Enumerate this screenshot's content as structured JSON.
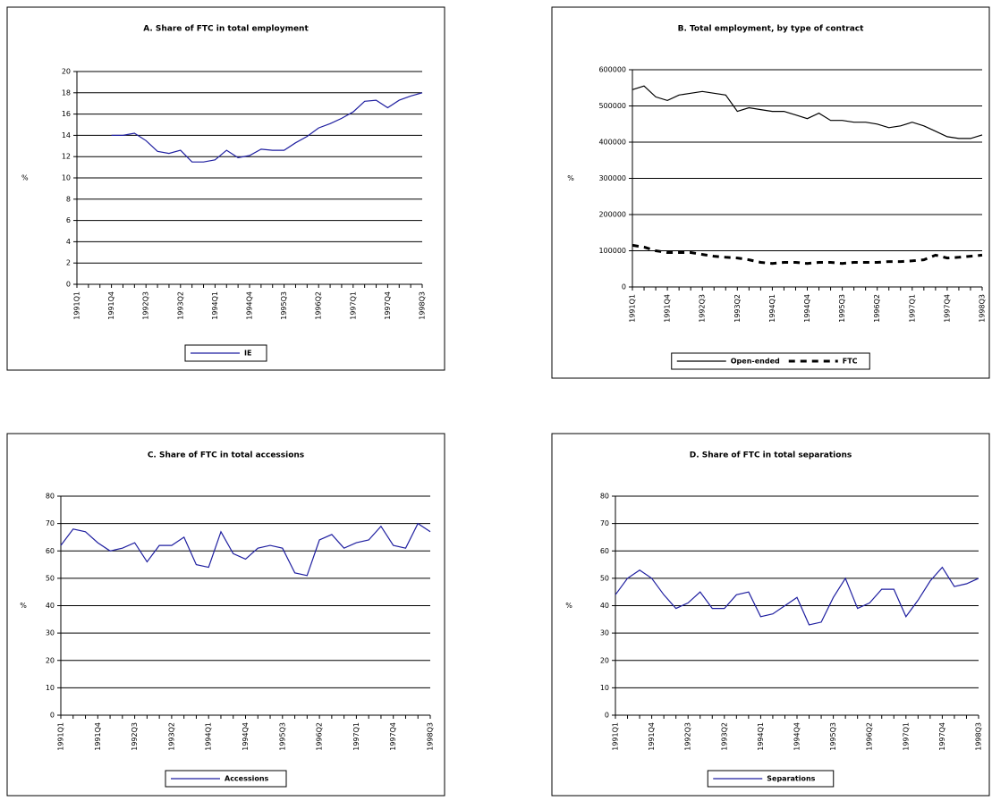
{
  "chart_data": [
    {
      "type": "line",
      "title": "A. Share of FTC in total employment",
      "y_label": "%",
      "categories": [
        "1991Q1",
        null,
        null,
        "1991Q4",
        null,
        null,
        "1992Q3",
        null,
        null,
        "1993Q2",
        null,
        null,
        "1994Q1",
        null,
        null,
        "1994Q4",
        null,
        null,
        "1995Q3",
        null,
        null,
        "1996Q2",
        null,
        null,
        "1997Q1",
        null,
        null,
        "1997Q4",
        null,
        null,
        "1998Q3"
      ],
      "series": [
        {
          "name": "IE",
          "color": "#1f1fa0",
          "line_style": "solid",
          "values": [
            null,
            null,
            null,
            14.0,
            14.0,
            14.2,
            13.5,
            12.5,
            12.3,
            12.6,
            11.5,
            11.5,
            11.7,
            12.6,
            11.9,
            12.1,
            12.7,
            12.6,
            12.6,
            13.3,
            13.9,
            14.7,
            15.1,
            15.6,
            16.2,
            17.2,
            17.3,
            16.6,
            17.3,
            17.7,
            18.0
          ]
        }
      ],
      "ylim": [
        0,
        20
      ],
      "yticks": [
        0,
        2,
        4,
        6,
        8,
        10,
        12,
        14,
        16,
        18,
        20
      ],
      "grid": true
    },
    {
      "type": "line",
      "title": "B. Total employment, by type of contract",
      "y_label": "%",
      "categories": [
        "1991Q1",
        null,
        null,
        "1991Q4",
        null,
        null,
        "1992Q3",
        null,
        null,
        "1993Q2",
        null,
        null,
        "1994Q1",
        null,
        null,
        "1994Q4",
        null,
        null,
        "1995Q3",
        null,
        null,
        "1996Q2",
        null,
        null,
        "1997Q1",
        null,
        null,
        "1997Q4",
        null,
        null,
        "1998Q3"
      ],
      "series": [
        {
          "name": "Open-ended",
          "color": "#000000",
          "line_style": "solid",
          "values": [
            545000,
            555000,
            525000,
            515000,
            530000,
            535000,
            540000,
            535000,
            530000,
            485000,
            495000,
            490000,
            485000,
            485000,
            475000,
            465000,
            480000,
            460000,
            460000,
            455000,
            455000,
            450000,
            440000,
            445000,
            455000,
            445000,
            430000,
            415000,
            410000,
            410000,
            420000
          ]
        },
        {
          "name": "FTC",
          "color": "#000000",
          "line_style": "dashed",
          "values": [
            115000,
            110000,
            100000,
            95000,
            95000,
            95000,
            90000,
            85000,
            82000,
            80000,
            75000,
            68000,
            65000,
            68000,
            68000,
            65000,
            68000,
            68000,
            65000,
            68000,
            68000,
            68000,
            70000,
            70000,
            72000,
            75000,
            88000,
            80000,
            82000,
            85000,
            88000
          ]
        }
      ],
      "ylim": [
        0,
        600000
      ],
      "yticks": [
        0,
        100000,
        200000,
        300000,
        400000,
        500000,
        600000
      ],
      "grid": true
    },
    {
      "type": "line",
      "title": "C. Share of FTC in total accessions",
      "y_label": "%",
      "categories": [
        "1991Q1",
        null,
        null,
        "1991Q4",
        null,
        null,
        "1992Q3",
        null,
        null,
        "1993Q2",
        null,
        null,
        "1994Q1",
        null,
        null,
        "1994Q4",
        null,
        null,
        "1995Q3",
        null,
        null,
        "1996Q2",
        null,
        null,
        "1997Q1",
        null,
        null,
        "1997Q4",
        null,
        null,
        "1998Q3"
      ],
      "series": [
        {
          "name": "Accessions",
          "color": "#1f1fa0",
          "line_style": "solid",
          "values": [
            62,
            68,
            67,
            63,
            60,
            61,
            63,
            56,
            62,
            62,
            65,
            55,
            54,
            67,
            59,
            57,
            61,
            62,
            61,
            52,
            51,
            64,
            66,
            61,
            63,
            64,
            69,
            62,
            61,
            70,
            67
          ]
        }
      ],
      "ylim": [
        0,
        80
      ],
      "yticks": [
        0,
        10,
        20,
        30,
        40,
        50,
        60,
        70,
        80
      ],
      "grid": true
    },
    {
      "type": "line",
      "title": "D. Share of FTC in total separations",
      "y_label": "%",
      "categories": [
        "1991Q1",
        null,
        null,
        "1991Q4",
        null,
        null,
        "1992Q3",
        null,
        null,
        "1993Q2",
        null,
        null,
        "1994Q1",
        null,
        null,
        "1994Q4",
        null,
        null,
        "1995Q3",
        null,
        null,
        "1996Q2",
        null,
        null,
        "1997Q1",
        null,
        null,
        "1997Q4",
        null,
        null,
        "1998Q3"
      ],
      "series": [
        {
          "name": "Separations",
          "color": "#1f1fa0",
          "line_style": "solid",
          "values": [
            44,
            50,
            53,
            50,
            44,
            39,
            41,
            45,
            39,
            39,
            44,
            45,
            36,
            37,
            40,
            43,
            33,
            34,
            43,
            50,
            39,
            41,
            46,
            46,
            36,
            42,
            49,
            54,
            47,
            48,
            50
          ]
        }
      ],
      "ylim": [
        0,
        80
      ],
      "yticks": [
        0,
        10,
        20,
        30,
        40,
        50,
        60,
        70,
        80
      ],
      "grid": true
    }
  ]
}
